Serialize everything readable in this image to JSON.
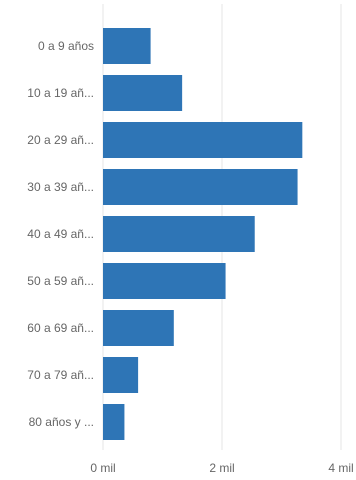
{
  "chart_data": {
    "type": "bar",
    "orientation": "horizontal",
    "categories": [
      "0 a 9 años",
      "10 a 19 añ...",
      "20 a 29 añ...",
      "30 a 39 añ...",
      "40 a 49 añ...",
      "50 a 59 añ...",
      "60 a 69 añ...",
      "70 a 79 añ...",
      "80 años y ..."
    ],
    "values": [
      800,
      1330,
      3350,
      3270,
      2550,
      2060,
      1190,
      590,
      360
    ],
    "xlim": [
      0,
      4000
    ],
    "x_ticks": [
      {
        "value": 0,
        "label": "0 mil"
      },
      {
        "value": 2000,
        "label": "2 mil"
      },
      {
        "value": 4000,
        "label": "4 mil"
      }
    ],
    "grid": "vertical",
    "bar_color": "#2e75b6",
    "grid_color": "#e6e6e6"
  }
}
